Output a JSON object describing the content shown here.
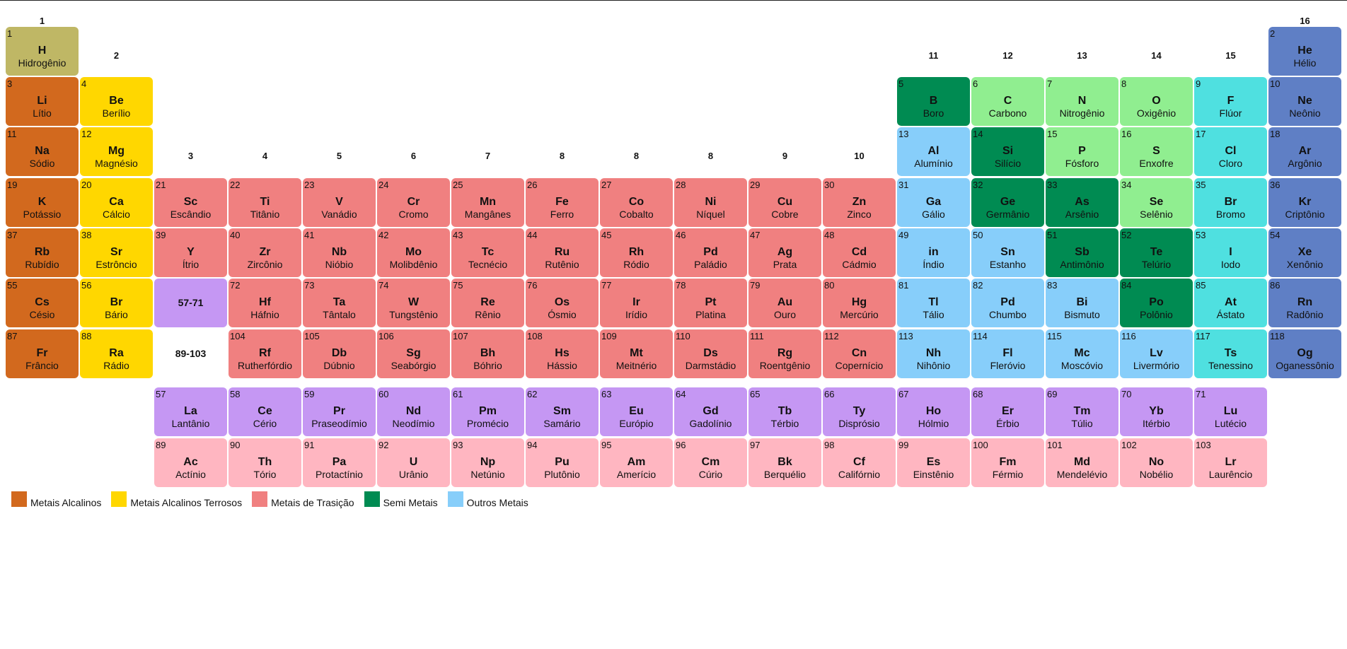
{
  "group_labels": [
    "1",
    "2",
    "3",
    "4",
    "5",
    "6",
    "7",
    "8",
    "8",
    "8",
    "9",
    "10",
    "11",
    "12",
    "13",
    "14",
    "15",
    "16"
  ],
  "placeholders": [
    "57-71",
    "89-103"
  ],
  "legend": [
    {
      "label": "Metais Alcalinos",
      "color": "#d2691e"
    },
    {
      "label": "Metais Alcalinos Terrosos",
      "color": "#ffd700"
    },
    {
      "label": "Metais de Trasição",
      "color": "#f08080"
    },
    {
      "label": "Semi Metais",
      "color": "#008b52"
    },
    {
      "label": "Outros Metais",
      "color": "#87cefa"
    }
  ],
  "category_colors": {
    "hydrogen": "#bfb765",
    "alkali": "#d2691e",
    "alkaline_earth": "#ffd700",
    "transition": "#f08080",
    "metalloid": "#008b52",
    "other_metal": "#87cefa",
    "nonmetal": "#90ee90",
    "halogen": "#4fe0e0",
    "noble_gas": "#5f7fc5",
    "lanthanide": "#c597f3",
    "actinide": "#ffb6c1"
  },
  "elements": [
    {
      "n": "1",
      "s": "H",
      "name": "Hidrogênio",
      "cat": "hydrogen"
    },
    {
      "n": "2",
      "s": "He",
      "name": "Hélio",
      "cat": "noble_gas"
    },
    {
      "n": "3",
      "s": "Li",
      "name": "Lítio",
      "cat": "alkali"
    },
    {
      "n": "4",
      "s": "Be",
      "name": "Berílio",
      "cat": "alkaline_earth"
    },
    {
      "n": "5",
      "s": "B",
      "name": "Boro",
      "cat": "metalloid"
    },
    {
      "n": "6",
      "s": "C",
      "name": "Carbono",
      "cat": "nonmetal"
    },
    {
      "n": "7",
      "s": "N",
      "name": "Nitrogênio",
      "cat": "nonmetal"
    },
    {
      "n": "8",
      "s": "O",
      "name": "Oxigênio",
      "cat": "nonmetal"
    },
    {
      "n": "9",
      "s": "F",
      "name": "Flúor",
      "cat": "halogen"
    },
    {
      "n": "10",
      "s": "Ne",
      "name": "Neônio",
      "cat": "noble_gas"
    },
    {
      "n": "11",
      "s": "Na",
      "name": "Sódio",
      "cat": "alkali"
    },
    {
      "n": "12",
      "s": "Mg",
      "name": "Magnésio",
      "cat": "alkaline_earth"
    },
    {
      "n": "13",
      "s": "Al",
      "name": "Alumínio",
      "cat": "other_metal"
    },
    {
      "n": "14",
      "s": "Si",
      "name": "Silício",
      "cat": "metalloid"
    },
    {
      "n": "15",
      "s": "P",
      "name": "Fósforo",
      "cat": "nonmetal"
    },
    {
      "n": "16",
      "s": "S",
      "name": "Enxofre",
      "cat": "nonmetal"
    },
    {
      "n": "17",
      "s": "Cl",
      "name": "Cloro",
      "cat": "halogen"
    },
    {
      "n": "18",
      "s": "Ar",
      "name": "Argônio",
      "cat": "noble_gas"
    },
    {
      "n": "19",
      "s": "K",
      "name": "Potássio",
      "cat": "alkali"
    },
    {
      "n": "20",
      "s": "Ca",
      "name": "Cálcio",
      "cat": "alkaline_earth"
    },
    {
      "n": "21",
      "s": "Sc",
      "name": "Escândio",
      "cat": "transition"
    },
    {
      "n": "22",
      "s": "Ti",
      "name": "Titânio",
      "cat": "transition"
    },
    {
      "n": "23",
      "s": "V",
      "name": "Vanádio",
      "cat": "transition"
    },
    {
      "n": "24",
      "s": "Cr",
      "name": "Cromo",
      "cat": "transition"
    },
    {
      "n": "25",
      "s": "Mn",
      "name": "Mangânes",
      "cat": "transition"
    },
    {
      "n": "26",
      "s": "Fe",
      "name": "Ferro",
      "cat": "transition"
    },
    {
      "n": "27",
      "s": "Co",
      "name": "Cobalto",
      "cat": "transition"
    },
    {
      "n": "28",
      "s": "Ni",
      "name": "Níquel",
      "cat": "transition"
    },
    {
      "n": "29",
      "s": "Cu",
      "name": "Cobre",
      "cat": "transition"
    },
    {
      "n": "30",
      "s": "Zn",
      "name": "Zinco",
      "cat": "transition"
    },
    {
      "n": "31",
      "s": "Ga",
      "name": "Gálio",
      "cat": "other_metal"
    },
    {
      "n": "32",
      "s": "Ge",
      "name": "Germânio",
      "cat": "metalloid"
    },
    {
      "n": "33",
      "s": "As",
      "name": "Arsênio",
      "cat": "metalloid"
    },
    {
      "n": "34",
      "s": "Se",
      "name": "Selênio",
      "cat": "nonmetal"
    },
    {
      "n": "35",
      "s": "Br",
      "name": "Bromo",
      "cat": "halogen"
    },
    {
      "n": "36",
      "s": "Kr",
      "name": "Criptônio",
      "cat": "noble_gas"
    },
    {
      "n": "37",
      "s": "Rb",
      "name": "Rubídio",
      "cat": "alkali"
    },
    {
      "n": "38",
      "s": "Sr",
      "name": "Estrôncio",
      "cat": "alkaline_earth"
    },
    {
      "n": "39",
      "s": "Y",
      "name": "Ítrio",
      "cat": "transition"
    },
    {
      "n": "40",
      "s": "Zr",
      "name": "Zircônio",
      "cat": "transition"
    },
    {
      "n": "41",
      "s": "Nb",
      "name": "Nióbio",
      "cat": "transition"
    },
    {
      "n": "42",
      "s": "Mo",
      "name": "Molibdênio",
      "cat": "transition"
    },
    {
      "n": "43",
      "s": "Tc",
      "name": "Tecnécio",
      "cat": "transition"
    },
    {
      "n": "44",
      "s": "Ru",
      "name": "Rutênio",
      "cat": "transition"
    },
    {
      "n": "45",
      "s": "Rh",
      "name": "Ródio",
      "cat": "transition"
    },
    {
      "n": "46",
      "s": "Pd",
      "name": "Paládio",
      "cat": "transition"
    },
    {
      "n": "47",
      "s": "Ag",
      "name": "Prata",
      "cat": "transition"
    },
    {
      "n": "48",
      "s": "Cd",
      "name": "Cádmio",
      "cat": "transition"
    },
    {
      "n": "49",
      "s": "in",
      "name": "Índio",
      "cat": "other_metal"
    },
    {
      "n": "50",
      "s": "Sn",
      "name": "Estanho",
      "cat": "other_metal"
    },
    {
      "n": "51",
      "s": "Sb",
      "name": "Antimônio",
      "cat": "metalloid"
    },
    {
      "n": "52",
      "s": "Te",
      "name": "Telúrio",
      "cat": "metalloid"
    },
    {
      "n": "53",
      "s": "I",
      "name": "Iodo",
      "cat": "halogen"
    },
    {
      "n": "54",
      "s": "Xe",
      "name": "Xenônio",
      "cat": "noble_gas"
    },
    {
      "n": "55",
      "s": "Cs",
      "name": "Césio",
      "cat": "alkali"
    },
    {
      "n": "56",
      "s": "Br",
      "name": "Bário",
      "cat": "alkaline_earth"
    },
    {
      "n": "72",
      "s": "Hf",
      "name": "Háfnio",
      "cat": "transition"
    },
    {
      "n": "73",
      "s": "Ta",
      "name": "Tântalo",
      "cat": "transition"
    },
    {
      "n": "74",
      "s": "W",
      "name": "Tungstênio",
      "cat": "transition"
    },
    {
      "n": "75",
      "s": "Re",
      "name": "Rênio",
      "cat": "transition"
    },
    {
      "n": "76",
      "s": "Os",
      "name": "Ósmio",
      "cat": "transition"
    },
    {
      "n": "77",
      "s": "Ir",
      "name": "Irídio",
      "cat": "transition"
    },
    {
      "n": "78",
      "s": "Pt",
      "name": "Platina",
      "cat": "transition"
    },
    {
      "n": "79",
      "s": "Au",
      "name": "Ouro",
      "cat": "transition"
    },
    {
      "n": "80",
      "s": "Hg",
      "name": "Mercúrio",
      "cat": "transition"
    },
    {
      "n": "81",
      "s": "Tl",
      "name": "Tálio",
      "cat": "other_metal"
    },
    {
      "n": "82",
      "s": "Pd",
      "name": "Chumbo",
      "cat": "other_metal"
    },
    {
      "n": "83",
      "s": "Bi",
      "name": "Bismuto",
      "cat": "other_metal"
    },
    {
      "n": "84",
      "s": "Po",
      "name": "Polônio",
      "cat": "metalloid"
    },
    {
      "n": "85",
      "s": "At",
      "name": "Ástato",
      "cat": "halogen"
    },
    {
      "n": "86",
      "s": "Rn",
      "name": "Radônio",
      "cat": "noble_gas"
    },
    {
      "n": "87",
      "s": "Fr",
      "name": "Frâncio",
      "cat": "alkali"
    },
    {
      "n": "88",
      "s": "Ra",
      "name": "Rádio",
      "cat": "alkaline_earth"
    },
    {
      "n": "104",
      "s": "Rf",
      "name": "Rutherfórdio",
      "cat": "transition"
    },
    {
      "n": "105",
      "s": "Db",
      "name": "Dúbnio",
      "cat": "transition"
    },
    {
      "n": "106",
      "s": "Sg",
      "name": "Seabórgio",
      "cat": "transition"
    },
    {
      "n": "107",
      "s": "Bh",
      "name": "Bóhrio",
      "cat": "transition"
    },
    {
      "n": "108",
      "s": "Hs",
      "name": "Hássio",
      "cat": "transition"
    },
    {
      "n": "109",
      "s": "Mt",
      "name": "Meitnério",
      "cat": "transition"
    },
    {
      "n": "110",
      "s": "Ds",
      "name": "Darmstádio",
      "cat": "transition"
    },
    {
      "n": "111",
      "s": "Rg",
      "name": "Roentgênio",
      "cat": "transition"
    },
    {
      "n": "112",
      "s": "Cn",
      "name": "Copernício",
      "cat": "transition"
    },
    {
      "n": "113",
      "s": "Nh",
      "name": "Nihônio",
      "cat": "other_metal"
    },
    {
      "n": "114",
      "s": "Fl",
      "name": "Fleróvio",
      "cat": "other_metal"
    },
    {
      "n": "115",
      "s": "Mc",
      "name": "Moscóvio",
      "cat": "other_metal"
    },
    {
      "n": "116",
      "s": "Lv",
      "name": "Livermório",
      "cat": "other_metal"
    },
    {
      "n": "117",
      "s": "Ts",
      "name": "Tenessino",
      "cat": "halogen"
    },
    {
      "n": "118",
      "s": "Og",
      "name": "Oganessônio",
      "cat": "noble_gas"
    },
    {
      "n": "57",
      "s": "La",
      "name": "Lantânio",
      "cat": "lanthanide"
    },
    {
      "n": "58",
      "s": "Ce",
      "name": "Cério",
      "cat": "lanthanide"
    },
    {
      "n": "59",
      "s": "Pr",
      "name": "Praseodímio",
      "cat": "lanthanide"
    },
    {
      "n": "60",
      "s": "Nd",
      "name": "Neodímio",
      "cat": "lanthanide"
    },
    {
      "n": "61",
      "s": "Pm",
      "name": "Promécio",
      "cat": "lanthanide"
    },
    {
      "n": "62",
      "s": "Sm",
      "name": "Samário",
      "cat": "lanthanide"
    },
    {
      "n": "63",
      "s": "Eu",
      "name": "Európio",
      "cat": "lanthanide"
    },
    {
      "n": "64",
      "s": "Gd",
      "name": "Gadolínio",
      "cat": "lanthanide"
    },
    {
      "n": "65",
      "s": "Tb",
      "name": "Térbio",
      "cat": "lanthanide"
    },
    {
      "n": "66",
      "s": "Ty",
      "name": "Disprósio",
      "cat": "lanthanide"
    },
    {
      "n": "67",
      "s": "Ho",
      "name": "Hólmio",
      "cat": "lanthanide"
    },
    {
      "n": "68",
      "s": "Er",
      "name": "Érbio",
      "cat": "lanthanide"
    },
    {
      "n": "69",
      "s": "Tm",
      "name": "Túlio",
      "cat": "lanthanide"
    },
    {
      "n": "70",
      "s": "Yb",
      "name": "Itérbio",
      "cat": "lanthanide"
    },
    {
      "n": "71",
      "s": "Lu",
      "name": "Lutécio",
      "cat": "lanthanide"
    },
    {
      "n": "89",
      "s": "Ac",
      "name": "Actínio",
      "cat": "actinide"
    },
    {
      "n": "90",
      "s": "Th",
      "name": "Tório",
      "cat": "actinide"
    },
    {
      "n": "91",
      "s": "Pa",
      "name": "Protactínio",
      "cat": "actinide"
    },
    {
      "n": "92",
      "s": "U",
      "name": "Urânio",
      "cat": "actinide"
    },
    {
      "n": "93",
      "s": "Np",
      "name": "Netúnio",
      "cat": "actinide"
    },
    {
      "n": "94",
      "s": "Pu",
      "name": "Plutônio",
      "cat": "actinide"
    },
    {
      "n": "95",
      "s": "Am",
      "name": "Amerício",
      "cat": "actinide"
    },
    {
      "n": "96",
      "s": "Cm",
      "name": "Cúrio",
      "cat": "actinide"
    },
    {
      "n": "97",
      "s": "Bk",
      "name": "Berquélio",
      "cat": "actinide"
    },
    {
      "n": "98",
      "s": "Cf",
      "name": "Califórnio",
      "cat": "actinide"
    },
    {
      "n": "99",
      "s": "Es",
      "name": "Einstênio",
      "cat": "actinide"
    },
    {
      "n": "100",
      "s": "Fm",
      "name": "Férmio",
      "cat": "actinide"
    },
    {
      "n": "101",
      "s": "Md",
      "name": "Mendelévio",
      "cat": "actinide"
    },
    {
      "n": "102",
      "s": "No",
      "name": "Nobélio",
      "cat": "actinide"
    },
    {
      "n": "103",
      "s": "Lr",
      "name": "Laurêncio",
      "cat": "actinide"
    }
  ]
}
